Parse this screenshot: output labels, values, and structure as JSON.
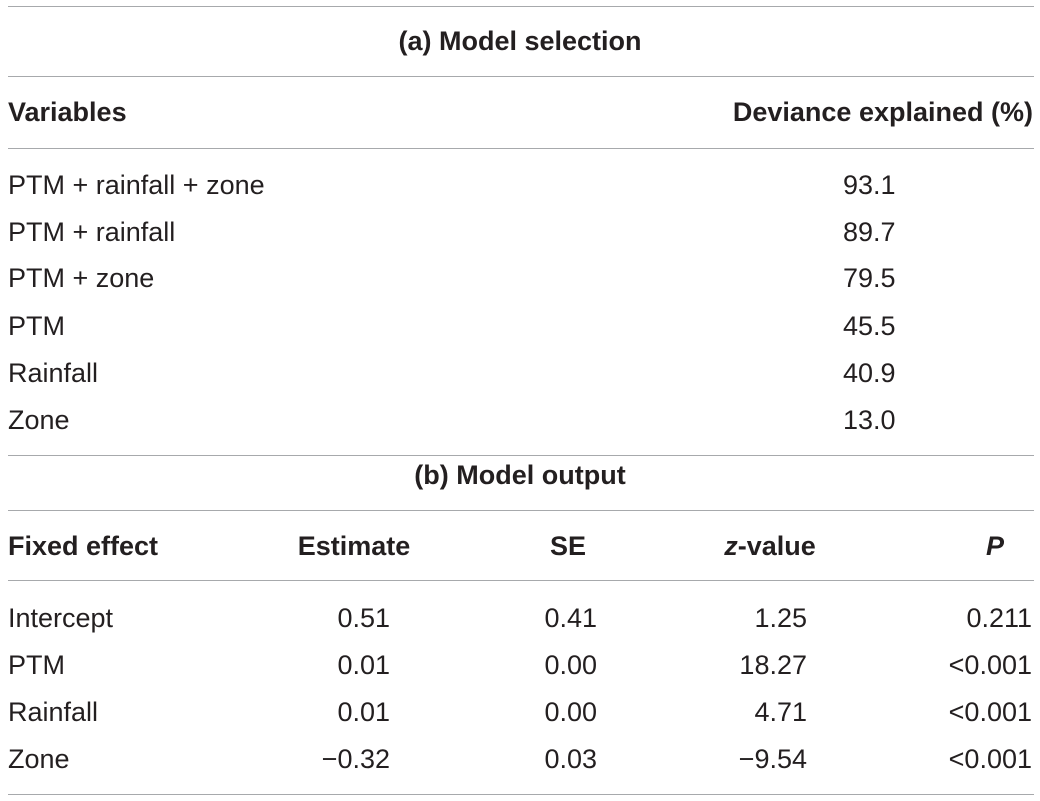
{
  "section_a": {
    "title": "(a) Model selection",
    "headers": {
      "variables": "Variables",
      "deviance": "Deviance explained (%)"
    },
    "rows": [
      {
        "variables": "PTM + rainfall + zone",
        "deviance": "93.1"
      },
      {
        "variables": "PTM + rainfall",
        "deviance": "89.7"
      },
      {
        "variables": "PTM + zone",
        "deviance": "79.5"
      },
      {
        "variables": "PTM",
        "deviance": "45.5"
      },
      {
        "variables": "Rainfall",
        "deviance": "40.9"
      },
      {
        "variables": "Zone",
        "deviance": "13.0"
      }
    ]
  },
  "section_b": {
    "title": "(b) Model output",
    "headers": {
      "fixed_effect": "Fixed effect",
      "estimate": "Estimate",
      "se": "SE",
      "z_value_italic": "z",
      "z_value_rest": "-value",
      "p": "P"
    },
    "rows": [
      {
        "fixed_effect": "Intercept",
        "estimate": "0.51",
        "se": "0.41",
        "z_value": "1.25",
        "p": "0.211"
      },
      {
        "fixed_effect": "PTM",
        "estimate": "0.01",
        "se": "0.00",
        "z_value": "18.27",
        "p": "<0.001"
      },
      {
        "fixed_effect": "Rainfall",
        "estimate": "0.01",
        "se": "0.00",
        "z_value": "4.71",
        "p": "<0.001"
      },
      {
        "fixed_effect": "Zone",
        "estimate": "−0.32",
        "se": "0.03",
        "z_value": "−9.54",
        "p": "<0.001"
      }
    ]
  }
}
